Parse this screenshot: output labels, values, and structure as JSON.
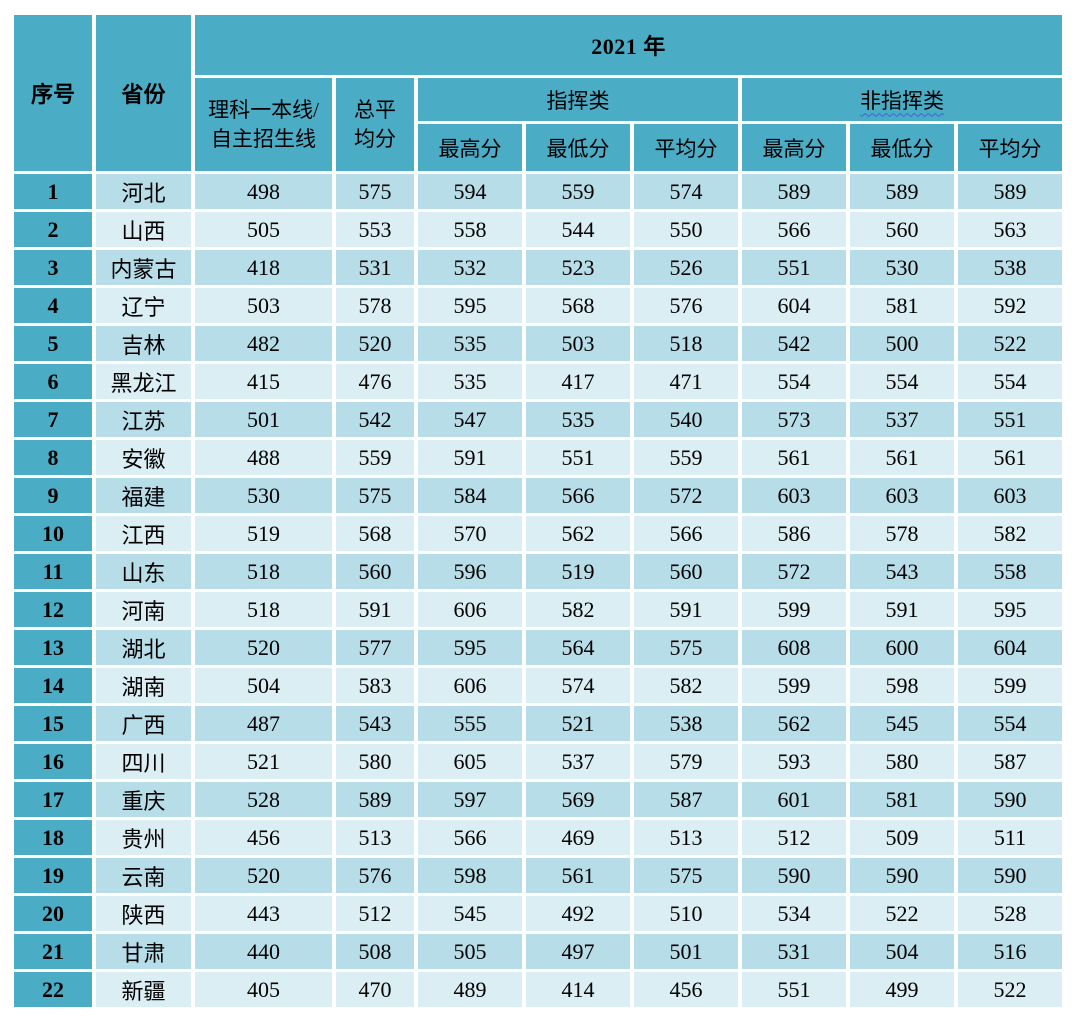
{
  "colors": {
    "page_bg": "#ffffff",
    "header_bg": "#4bacc6",
    "row_odd_bg": "#b7dde8",
    "row_even_bg": "#daeef3",
    "text": "#000000",
    "squiggle_color": "#3a66d6"
  },
  "header": {
    "year_label": "2021 年",
    "col_index": "序号",
    "col_province": "省份",
    "col_science_line": "理科一本线/\n自主招生线",
    "col_total_avg": "总平\n均分",
    "group_command": "指挥类",
    "group_noncommand": "非指挥类",
    "sub_headers": [
      "最高分",
      "最低分",
      "平均分",
      "最高分",
      "最低分",
      "平均分"
    ]
  },
  "rows": [
    {
      "index": "1",
      "province": "河北",
      "scores": [
        "498",
        "575",
        "594",
        "559",
        "574",
        "589",
        "589",
        "589"
      ]
    },
    {
      "index": "2",
      "province": "山西",
      "scores": [
        "505",
        "553",
        "558",
        "544",
        "550",
        "566",
        "560",
        "563"
      ]
    },
    {
      "index": "3",
      "province": "内蒙古",
      "scores": [
        "418",
        "531",
        "532",
        "523",
        "526",
        "551",
        "530",
        "538"
      ]
    },
    {
      "index": "4",
      "province": "辽宁",
      "scores": [
        "503",
        "578",
        "595",
        "568",
        "576",
        "604",
        "581",
        "592"
      ]
    },
    {
      "index": "5",
      "province": "吉林",
      "scores": [
        "482",
        "520",
        "535",
        "503",
        "518",
        "542",
        "500",
        "522"
      ]
    },
    {
      "index": "6",
      "province": "黑龙江",
      "scores": [
        "415",
        "476",
        "535",
        "417",
        "471",
        "554",
        "554",
        "554"
      ]
    },
    {
      "index": "7",
      "province": "江苏",
      "scores": [
        "501",
        "542",
        "547",
        "535",
        "540",
        "573",
        "537",
        "551"
      ]
    },
    {
      "index": "8",
      "province": "安徽",
      "scores": [
        "488",
        "559",
        "591",
        "551",
        "559",
        "561",
        "561",
        "561"
      ]
    },
    {
      "index": "9",
      "province": "福建",
      "scores": [
        "530",
        "575",
        "584",
        "566",
        "572",
        "603",
        "603",
        "603"
      ]
    },
    {
      "index": "10",
      "province": "江西",
      "scores": [
        "519",
        "568",
        "570",
        "562",
        "566",
        "586",
        "578",
        "582"
      ]
    },
    {
      "index": "11",
      "province": "山东",
      "scores": [
        "518",
        "560",
        "596",
        "519",
        "560",
        "572",
        "543",
        "558"
      ]
    },
    {
      "index": "12",
      "province": "河南",
      "scores": [
        "518",
        "591",
        "606",
        "582",
        "591",
        "599",
        "591",
        "595"
      ]
    },
    {
      "index": "13",
      "province": "湖北",
      "scores": [
        "520",
        "577",
        "595",
        "564",
        "575",
        "608",
        "600",
        "604"
      ]
    },
    {
      "index": "14",
      "province": "湖南",
      "scores": [
        "504",
        "583",
        "606",
        "574",
        "582",
        "599",
        "598",
        "599"
      ]
    },
    {
      "index": "15",
      "province": "广西",
      "scores": [
        "487",
        "543",
        "555",
        "521",
        "538",
        "562",
        "545",
        "554"
      ]
    },
    {
      "index": "16",
      "province": "四川",
      "scores": [
        "521",
        "580",
        "605",
        "537",
        "579",
        "593",
        "580",
        "587"
      ]
    },
    {
      "index": "17",
      "province": "重庆",
      "scores": [
        "528",
        "589",
        "597",
        "569",
        "587",
        "601",
        "581",
        "590"
      ]
    },
    {
      "index": "18",
      "province": "贵州",
      "scores": [
        "456",
        "513",
        "566",
        "469",
        "513",
        "512",
        "509",
        "511"
      ]
    },
    {
      "index": "19",
      "province": "云南",
      "scores": [
        "520",
        "576",
        "598",
        "561",
        "575",
        "590",
        "590",
        "590"
      ]
    },
    {
      "index": "20",
      "province": "陕西",
      "scores": [
        "443",
        "512",
        "545",
        "492",
        "510",
        "534",
        "522",
        "528"
      ]
    },
    {
      "index": "21",
      "province": "甘肃",
      "scores": [
        "440",
        "508",
        "505",
        "497",
        "501",
        "531",
        "504",
        "516"
      ]
    },
    {
      "index": "22",
      "province": "新疆",
      "scores": [
        "405",
        "470",
        "489",
        "414",
        "456",
        "551",
        "499",
        "522"
      ]
    }
  ]
}
